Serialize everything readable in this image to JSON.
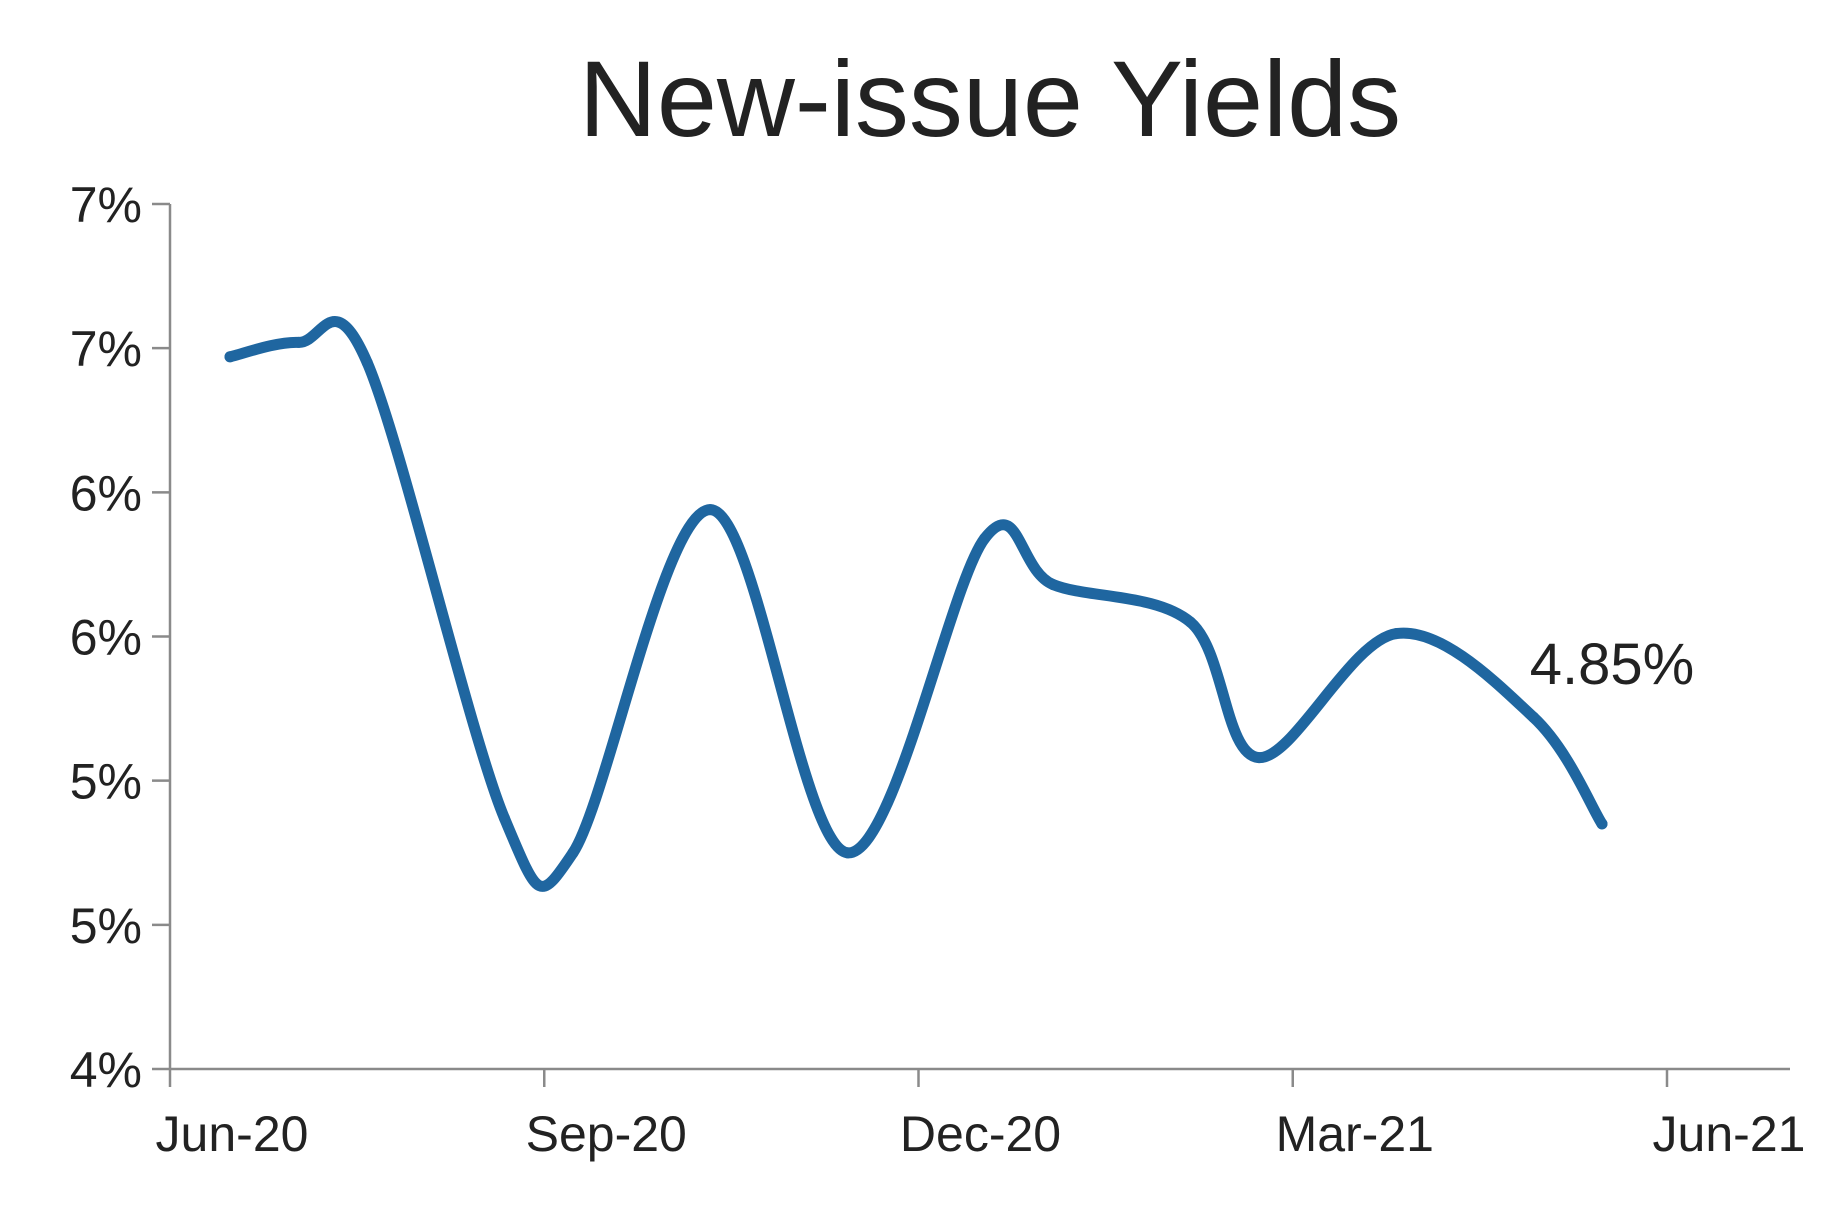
{
  "chart_data": {
    "type": "line",
    "title": "New-issue Yields",
    "xlabel": "",
    "ylabel": "",
    "x_tick_labels": [
      "Jun-20",
      "Sep-20",
      "Dec-20",
      "Mar-21",
      "Jun-21"
    ],
    "y_tick_labels": [
      "4%",
      "5%",
      "5%",
      "6%",
      "6%",
      "7%",
      "7%"
    ],
    "y_tick_values": [
      4.0,
      4.5,
      5.0,
      5.5,
      6.0,
      6.5,
      7.0
    ],
    "ylim": [
      4.0,
      7.0
    ],
    "x_tick_months": [
      0,
      3,
      6,
      9,
      12
    ],
    "grid": false,
    "legend": "none",
    "line_color": "#1f66a0",
    "series": [
      {
        "x": [
          0.0,
          0.6,
          1.2,
          2.4,
          3.0,
          4.2,
          5.4,
          6.6,
          7.2,
          8.4,
          9.0,
          10.2,
          11.4,
          12.0
        ],
        "y": [
          6.47,
          6.52,
          6.45,
          4.87,
          4.75,
          5.94,
          4.75,
          5.84,
          5.68,
          5.55,
          5.08,
          5.51,
          5.22,
          4.85
        ]
      }
    ],
    "annotations": [
      {
        "text": "4.85%",
        "x": 12.0,
        "y": 4.85
      }
    ]
  }
}
